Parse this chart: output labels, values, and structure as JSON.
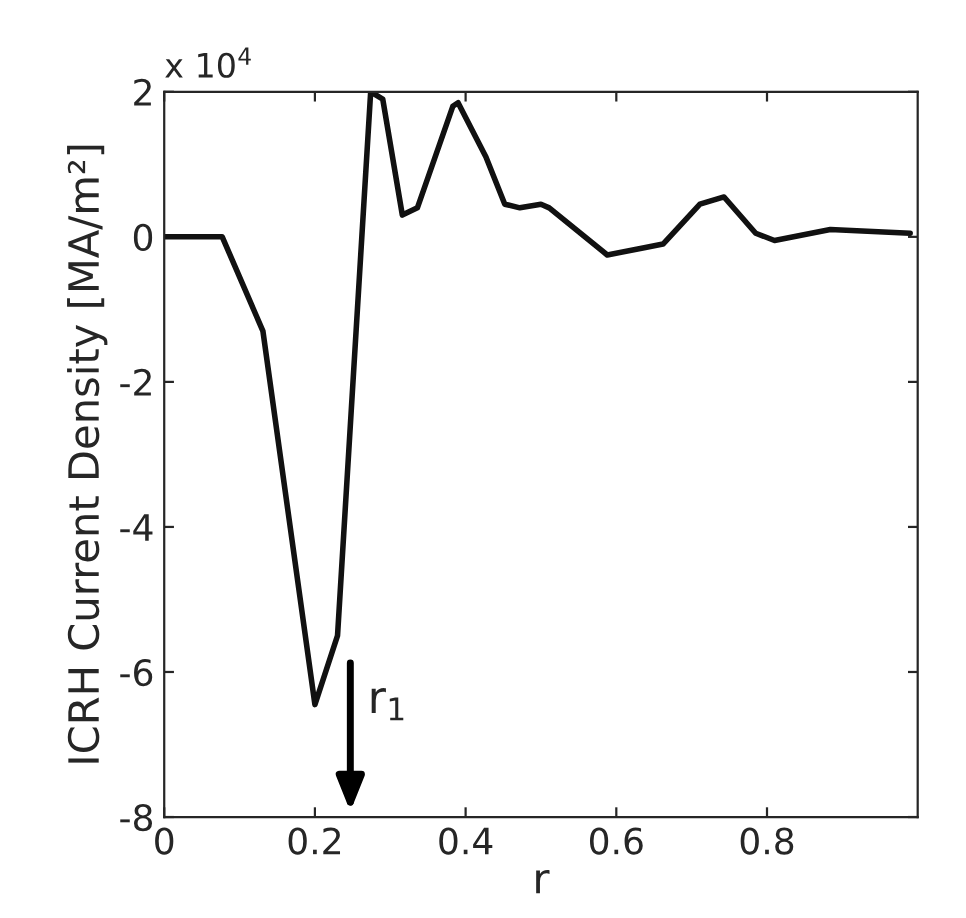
{
  "chart_data": {
    "type": "line",
    "xlabel": "r",
    "ylabel": "ICRH Current Density [MA/m²]",
    "x": [
      0,
      0.077,
      0.131,
      0.2,
      0.23,
      0.274,
      0.29,
      0.316,
      0.336,
      0.383,
      0.39,
      0.427,
      0.452,
      0.472,
      0.5,
      0.511,
      0.588,
      0.637,
      0.662,
      0.711,
      0.743,
      0.785,
      0.81,
      0.884,
      0.99
    ],
    "series": [
      {
        "color": "#111111",
        "values": [
          0,
          0,
          -1.3,
          -6.45,
          -5.5,
          2.0,
          1.9,
          0.3,
          0.4,
          1.8,
          1.85,
          1.1,
          0.45,
          0.4,
          0.45,
          0.4,
          -0.25,
          -0.15,
          -0.1,
          0.45,
          0.55,
          0.05,
          -0.05,
          0.1,
          0.05
        ]
      }
    ],
    "xlim": [
      0,
      1
    ],
    "ylim": [
      -8,
      2
    ],
    "xticks": [
      0,
      0.2,
      0.4,
      0.6,
      0.8
    ],
    "yticks": [
      -8,
      -6,
      -4,
      -2,
      0,
      2
    ],
    "annotations": [
      "x 10$^{4}$",
      "r$_{1}$"
    ],
    "grid": false,
    "legend": false,
    "marker": "none",
    "line_style": "solid"
  }
}
